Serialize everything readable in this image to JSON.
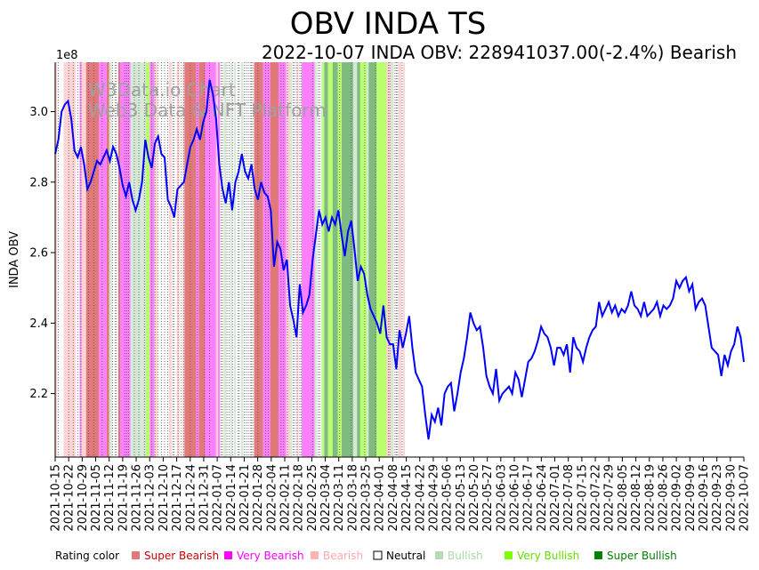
{
  "chart_data": {
    "type": "line",
    "title": "OBV INDA TS",
    "subtitle": "2022-10-07 INDA OBV: 228941037.00(-2.4%) Bearish",
    "ylabel": "INDA OBV",
    "xlabel": "",
    "y_multiplier_label": "1e8",
    "y_scale": 100000000,
    "ylim": [
      2.02,
      3.14
    ],
    "y_ticks": [
      2.2,
      2.4,
      2.6,
      2.8,
      3.0
    ],
    "y_tick_labels": [
      "2.2",
      "2.4",
      "2.6",
      "2.8",
      "3.0"
    ],
    "x_ticks": [
      "2021-10-15",
      "2021-10-22",
      "2021-10-29",
      "2021-11-05",
      "2021-11-12",
      "2021-11-19",
      "2021-11-26",
      "2021-12-03",
      "2021-12-10",
      "2021-12-17",
      "2021-12-24",
      "2021-12-31",
      "2022-01-07",
      "2022-01-14",
      "2022-01-21",
      "2022-01-28",
      "2022-02-04",
      "2022-02-11",
      "2022-02-18",
      "2022-02-25",
      "2022-03-04",
      "2022-03-11",
      "2022-03-18",
      "2022-03-25",
      "2022-04-01",
      "2022-04-08",
      "2022-04-15",
      "2022-04-22",
      "2022-04-29",
      "2022-05-06",
      "2022-05-13",
      "2022-05-20",
      "2022-05-27",
      "2022-06-03",
      "2022-06-10",
      "2022-06-17",
      "2022-06-24",
      "2022-07-01",
      "2022-07-08",
      "2022-07-15",
      "2022-07-22",
      "2022-07-29",
      "2022-08-05",
      "2022-08-12",
      "2022-08-19",
      "2022-08-26",
      "2022-09-02",
      "2022-09-09",
      "2022-09-16",
      "2022-09-23",
      "2022-09-30",
      "2022-10-07"
    ],
    "series": [
      {
        "name": "OBV",
        "color": "#0000ff",
        "values": [
          2.88,
          2.92,
          3.0,
          3.02,
          3.03,
          2.98,
          2.89,
          2.87,
          2.9,
          2.85,
          2.78,
          2.8,
          2.83,
          2.86,
          2.85,
          2.87,
          2.89,
          2.86,
          2.9,
          2.88,
          2.84,
          2.79,
          2.76,
          2.8,
          2.75,
          2.72,
          2.75,
          2.8,
          2.92,
          2.87,
          2.84,
          2.91,
          2.93,
          2.88,
          2.87,
          2.75,
          2.73,
          2.7,
          2.78,
          2.79,
          2.8,
          2.85,
          2.9,
          2.92,
          2.95,
          2.92,
          2.97,
          3.0,
          3.09,
          3.05,
          2.98,
          2.85,
          2.78,
          2.74,
          2.8,
          2.72,
          2.8,
          2.83,
          2.88,
          2.83,
          2.81,
          2.85,
          2.78,
          2.75,
          2.8,
          2.77,
          2.76,
          2.72,
          2.56,
          2.63,
          2.61,
          2.55,
          2.58,
          2.45,
          2.41,
          2.36,
          2.51,
          2.43,
          2.45,
          2.48,
          2.58,
          2.65,
          2.72,
          2.68,
          2.7,
          2.66,
          2.7,
          2.68,
          2.72,
          2.65,
          2.59,
          2.66,
          2.69,
          2.61,
          2.52,
          2.56,
          2.54,
          2.48,
          2.44,
          2.42,
          2.4,
          2.37,
          2.45,
          2.36,
          2.34,
          2.34,
          2.27,
          2.38,
          2.33,
          2.37,
          2.42,
          2.33,
          2.26,
          2.24,
          2.22,
          2.14,
          2.07,
          2.14,
          2.12,
          2.16,
          2.11,
          2.2,
          2.22,
          2.23,
          2.15,
          2.2,
          2.26,
          2.3,
          2.36,
          2.43,
          2.4,
          2.38,
          2.39,
          2.33,
          2.25,
          2.22,
          2.2,
          2.27,
          2.18,
          2.2,
          2.21,
          2.22,
          2.2,
          2.26,
          2.24,
          2.19,
          2.24,
          2.29,
          2.3,
          2.32,
          2.35,
          2.39,
          2.37,
          2.36,
          2.33,
          2.28,
          2.33,
          2.33,
          2.31,
          2.34,
          2.26,
          2.36,
          2.33,
          2.32,
          2.29,
          2.33,
          2.36,
          2.38,
          2.39,
          2.46,
          2.42,
          2.44,
          2.46,
          2.43,
          2.45,
          2.42,
          2.44,
          2.43,
          2.45,
          2.49,
          2.45,
          2.44,
          2.42,
          2.46,
          2.42,
          2.43,
          2.44,
          2.46,
          2.42,
          2.45,
          2.44,
          2.45,
          2.47,
          2.52,
          2.5,
          2.52,
          2.53,
          2.49,
          2.51,
          2.44,
          2.46,
          2.47,
          2.45,
          2.39,
          2.33,
          2.32,
          2.31,
          2.25,
          2.31,
          2.28,
          2.32,
          2.34,
          2.39,
          2.36,
          2.29
        ]
      }
    ],
    "rating_bands": [
      {
        "from": 0.0,
        "to": 0.6,
        "rating": "Bearish"
      },
      {
        "from": 2.6,
        "to": 6.4,
        "rating": "Bearish"
      },
      {
        "from": 7.6,
        "to": 8.2,
        "rating": "Very Bearish"
      },
      {
        "from": 8.2,
        "to": 9.6,
        "rating": "Bearish"
      },
      {
        "from": 9.6,
        "to": 13.6,
        "rating": "Super Bearish"
      },
      {
        "from": 13.6,
        "to": 16.0,
        "rating": "Very Bearish"
      },
      {
        "from": 16.0,
        "to": 16.8,
        "rating": "Super Bearish"
      },
      {
        "from": 16.8,
        "to": 17.6,
        "rating": "Bullish"
      },
      {
        "from": 19.6,
        "to": 20.2,
        "rating": "Super Bearish"
      },
      {
        "from": 20.2,
        "to": 23.4,
        "rating": "Very Bearish"
      },
      {
        "from": 23.4,
        "to": 24.0,
        "rating": "Bullish"
      },
      {
        "from": 24.0,
        "to": 27.0,
        "rating": "Bullish"
      },
      {
        "from": 27.0,
        "to": 28.2,
        "rating": "Bullish"
      },
      {
        "from": 28.2,
        "to": 29.4,
        "rating": "Very Bullish"
      },
      {
        "from": 29.4,
        "to": 30.8,
        "rating": "Very Bearish"
      },
      {
        "from": 30.8,
        "to": 31.8,
        "rating": "Bearish"
      },
      {
        "from": 35.4,
        "to": 36.2,
        "rating": "Bearish"
      },
      {
        "from": 37.8,
        "to": 38.6,
        "rating": "Bearish"
      },
      {
        "from": 39.6,
        "to": 40.2,
        "rating": "Bearish"
      },
      {
        "from": 40.2,
        "to": 43.8,
        "rating": "Super Bearish"
      },
      {
        "from": 43.8,
        "to": 44.6,
        "rating": "Very Bearish"
      },
      {
        "from": 44.6,
        "to": 46.6,
        "rating": "Super Bearish"
      },
      {
        "from": 46.6,
        "to": 50.0,
        "rating": "Very Bearish"
      },
      {
        "from": 50.0,
        "to": 50.6,
        "rating": "Bearish"
      },
      {
        "from": 50.6,
        "to": 51.2,
        "rating": "Very Bearish"
      },
      {
        "from": 52.4,
        "to": 53.2,
        "rating": "Bullish"
      },
      {
        "from": 54.4,
        "to": 55.0,
        "rating": "Bullish"
      },
      {
        "from": 55.6,
        "to": 56.2,
        "rating": "Bullish"
      },
      {
        "from": 57.8,
        "to": 58.4,
        "rating": "Bullish"
      },
      {
        "from": 61.8,
        "to": 64.6,
        "rating": "Super Bearish"
      },
      {
        "from": 64.6,
        "to": 66.8,
        "rating": "Very Bearish"
      },
      {
        "from": 66.8,
        "to": 69.4,
        "rating": "Super Bearish"
      },
      {
        "from": 69.4,
        "to": 71.8,
        "rating": "Very Bearish"
      },
      {
        "from": 71.8,
        "to": 73.0,
        "rating": "Bearish"
      },
      {
        "from": 73.0,
        "to": 73.6,
        "rating": "Bullish"
      },
      {
        "from": 75.0,
        "to": 75.6,
        "rating": "Bearish"
      },
      {
        "from": 76.6,
        "to": 80.6,
        "rating": "Very Bearish"
      },
      {
        "from": 80.6,
        "to": 81.4,
        "rating": "Bullish"
      },
      {
        "from": 82.6,
        "to": 83.0,
        "rating": "Bullish"
      },
      {
        "from": 83.0,
        "to": 83.6,
        "rating": "Very Bullish"
      },
      {
        "from": 83.6,
        "to": 84.8,
        "rating": "Super Bullish"
      },
      {
        "from": 84.8,
        "to": 86.2,
        "rating": "Very Bullish"
      },
      {
        "from": 86.2,
        "to": 87.8,
        "rating": "Super Bullish"
      },
      {
        "from": 87.8,
        "to": 89.0,
        "rating": "Very Bullish"
      },
      {
        "from": 89.0,
        "to": 92.6,
        "rating": "Super Bullish"
      },
      {
        "from": 92.6,
        "to": 93.8,
        "rating": "Bullish"
      },
      {
        "from": 93.8,
        "to": 94.8,
        "rating": "Super Bullish"
      },
      {
        "from": 94.8,
        "to": 96.8,
        "rating": "Very Bullish"
      },
      {
        "from": 96.8,
        "to": 97.4,
        "rating": "Bullish"
      },
      {
        "from": 97.4,
        "to": 99.8,
        "rating": "Super Bullish"
      },
      {
        "from": 99.8,
        "to": 103.0,
        "rating": "Very Bullish"
      },
      {
        "from": 103.0,
        "to": 104.4,
        "rating": "Bearish"
      },
      {
        "from": 104.4,
        "to": 105.2,
        "rating": "Bullish"
      },
      {
        "from": 106.6,
        "to": 107.6,
        "rating": "Bearish"
      },
      {
        "from": 108.0,
        "to": 108.6,
        "rating": "Bearish"
      }
    ],
    "neutral_lines": [
      1.0,
      4.2,
      5.6,
      7.0,
      8.0,
      10.4,
      12.0,
      14.6,
      17.8,
      18.6,
      19.0,
      21.6,
      22.2,
      22.8,
      24.6,
      26.0,
      27.8,
      30.0,
      31.0,
      32.0,
      33.0,
      34.0,
      35.0,
      36.6,
      37.0,
      38.2,
      39.2,
      40.0,
      42.0,
      44.2,
      46.4,
      48.0,
      51.6,
      52.0,
      53.4,
      54.0,
      55.2,
      56.8,
      57.2,
      58.8,
      59.4,
      60.0,
      60.6,
      61.0,
      61.4,
      63.0,
      65.4,
      66.2,
      70.2,
      71.0,
      72.2,
      74.0,
      74.4,
      75.2,
      76.0,
      76.4,
      80.0,
      81.8,
      82.2,
      88.4,
      92.0,
      96.2,
      99.6,
      103.6,
      104.0,
      105.6,
      106.0,
      106.4,
      107.8
    ],
    "legend": {
      "label": "Rating color",
      "entries": [
        {
          "label": "Super Bearish",
          "swatch": "#e07a7a",
          "text_color": "#cc0000"
        },
        {
          "label": "Very Bearish",
          "swatch": "#ff00ff",
          "text_color": "#ff00ff"
        },
        {
          "label": "Bearish",
          "swatch": "#ffb3b3",
          "text_color": "#ffaaaa"
        },
        {
          "label": "Neutral",
          "swatch": "#ffffff",
          "text_color": "#000000"
        },
        {
          "label": "Bullish",
          "swatch": "#b5dbb5",
          "text_color": "#a9d9a9"
        },
        {
          "label": "Very Bullish",
          "swatch": "#80ff00",
          "text_color": "#66dd00"
        },
        {
          "label": "Super Bullish",
          "swatch": "#008000",
          "text_color": "#008000"
        }
      ]
    },
    "band_colors": {
      "Super Bearish": "#e07a7a",
      "Very Bearish": "#ff80ff",
      "Bearish": "#ffd4d4",
      "Bullish": "#d5e8d5",
      "Very Bullish": "#b9ff70",
      "Super Bullish": "#80bb80"
    }
  },
  "watermark": {
    "line1": "W3Data.io Chart",
    "line2": "Web3 Data & NFT Platform"
  }
}
